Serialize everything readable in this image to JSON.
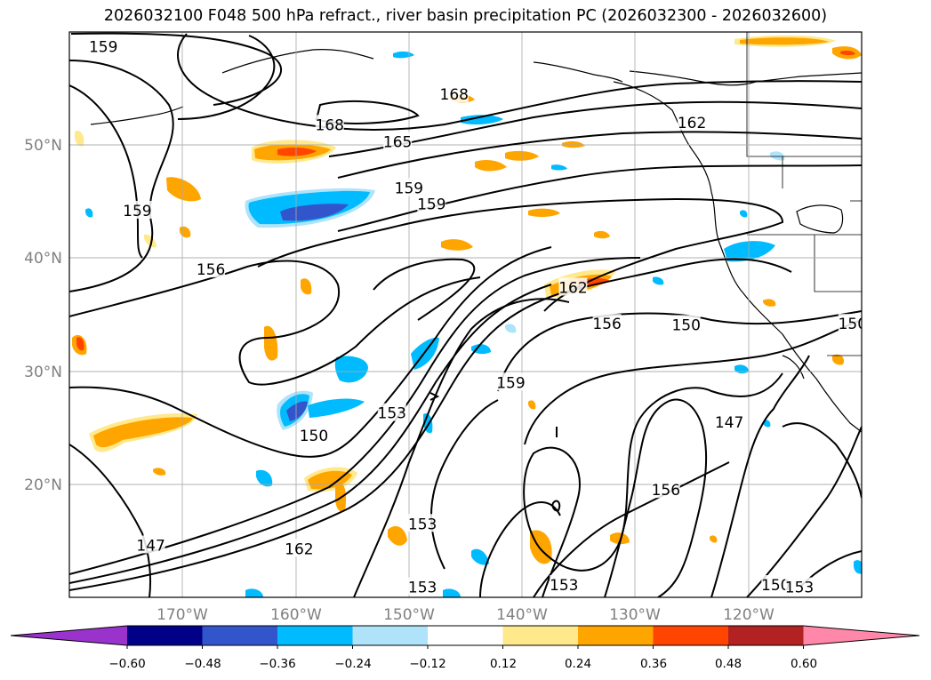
{
  "title": "2026032100 F048 500 hPa refract., river basin precipitation PC (2026032300 - 2026032600)",
  "map": {
    "latitude_labels": [
      "50°N",
      "40°N",
      "30°N",
      "20°N"
    ],
    "longitude_labels": [
      "170°W",
      "160°W",
      "150°W",
      "140°W",
      "130°W",
      "120°W"
    ],
    "extent": {
      "lon_min": -180,
      "lon_max": -110,
      "lat_min": 10,
      "lat_max": 60
    },
    "gridline_color": "#aaaaaa",
    "contour_color": "#000000",
    "contour_levels": [
      "147",
      "150",
      "153",
      "156",
      "159",
      "162",
      "165",
      "168"
    ],
    "contour_labels": [
      {
        "text": "159",
        "lon": -177,
        "lat": 58.7
      },
      {
        "text": "168",
        "lon": -146,
        "lat": 54.5
      },
      {
        "text": "168",
        "lon": -157,
        "lat": 51.8
      },
      {
        "text": "165",
        "lon": -151,
        "lat": 50.3
      },
      {
        "text": "162",
        "lon": -125,
        "lat": 52.0
      },
      {
        "text": "159",
        "lon": -150,
        "lat": 46.2
      },
      {
        "text": "159",
        "lon": -148,
        "lat": 44.8
      },
      {
        "text": "159",
        "lon": -174,
        "lat": 44.2
      },
      {
        "text": "156",
        "lon": -167.5,
        "lat": 39.0
      },
      {
        "text": "162",
        "lon": -135.5,
        "lat": 37.4
      },
      {
        "text": "156",
        "lon": -132.5,
        "lat": 34.2
      },
      {
        "text": "150",
        "lon": -125.5,
        "lat": 34.1
      },
      {
        "text": "150",
        "lon": -110.8,
        "lat": 34.2
      },
      {
        "text": "159",
        "lon": -141,
        "lat": 29.0
      },
      {
        "text": "153",
        "lon": -151.5,
        "lat": 26.3
      },
      {
        "text": "150",
        "lon": -158.4,
        "lat": 24.3
      },
      {
        "text": "147",
        "lon": -121.7,
        "lat": 25.5
      },
      {
        "text": "156",
        "lon": -127.3,
        "lat": 19.5
      },
      {
        "text": "153",
        "lon": -148.8,
        "lat": 16.5
      },
      {
        "text": "162",
        "lon": -159.7,
        "lat": 14.3
      },
      {
        "text": "147",
        "lon": -172.8,
        "lat": 14.6
      },
      {
        "text": "153",
        "lon": -136.3,
        "lat": 11.1
      },
      {
        "text": "153",
        "lon": -148.8,
        "lat": 10.9
      },
      {
        "text": "150",
        "lon": -117.6,
        "lat": 11.1
      },
      {
        "text": "153",
        "lon": -115.5,
        "lat": 10.9
      }
    ]
  },
  "colorbar": {
    "tick_labels": [
      "−0.60",
      "−0.48",
      "−0.36",
      "−0.24",
      "−0.12",
      "0.12",
      "0.24",
      "0.36",
      "0.48",
      "0.60"
    ],
    "colors": [
      "#9933cc",
      "#000088",
      "#3355cc",
      "#00bbff",
      "#aee3fa",
      "#ffffff",
      "#ffe98c",
      "#ffa500",
      "#ff4500",
      "#b22222",
      "#ff88aa"
    ],
    "extend": "both"
  }
}
